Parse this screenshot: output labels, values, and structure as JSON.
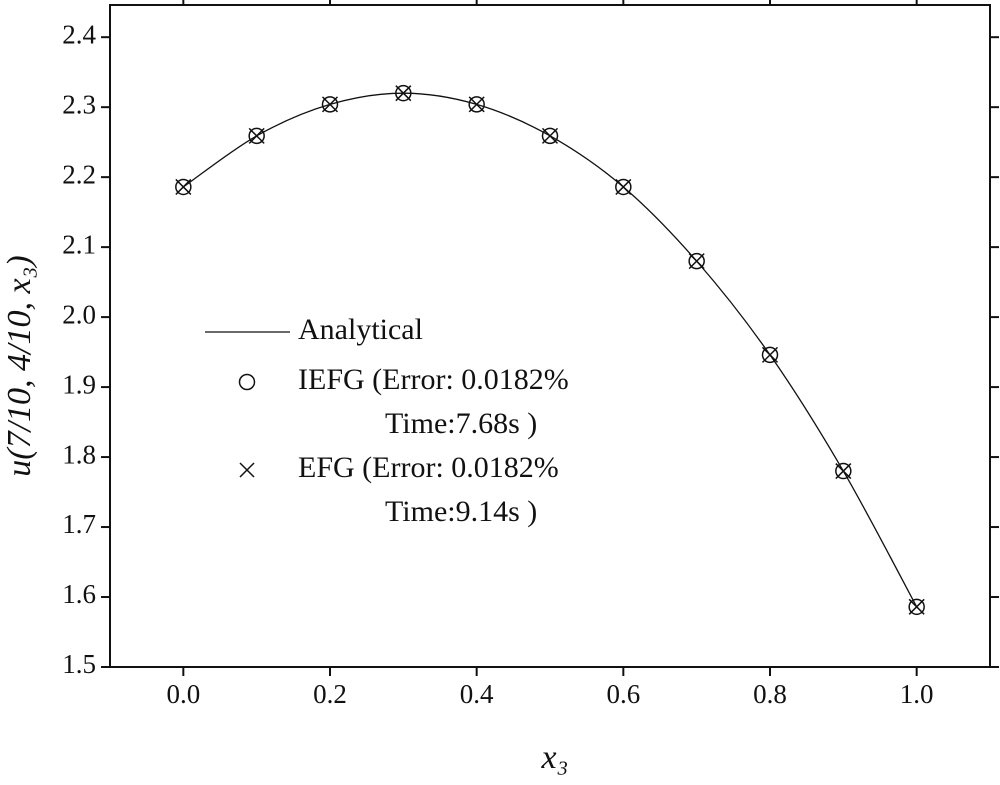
{
  "chart_data": {
    "type": "line",
    "x_label": "x₃",
    "y_label": "u(7/10, 4/10, x₃)",
    "x": [
      0.0,
      0.1,
      0.2,
      0.3,
      0.4,
      0.5,
      0.6,
      0.7,
      0.8,
      0.9,
      1.0
    ],
    "series": [
      {
        "name": "Analytical",
        "color": "#111111",
        "marker": "none",
        "line": true,
        "values": [
          2.186,
          2.259,
          2.304,
          2.32,
          2.304,
          2.259,
          2.186,
          2.08,
          1.946,
          1.78,
          1.586
        ]
      },
      {
        "name": "IEFG (Error: 0.0182%\nTime:7.68s )",
        "color": "#111111",
        "marker": "circle",
        "line": false,
        "values": [
          2.186,
          2.259,
          2.304,
          2.32,
          2.304,
          2.259,
          2.186,
          2.08,
          1.946,
          1.78,
          1.586
        ]
      },
      {
        "name": "EFG  (Error: 0.0182%\nTime:9.14s )",
        "color": "#111111",
        "marker": "cross",
        "line": false,
        "values": [
          2.186,
          2.259,
          2.304,
          2.32,
          2.304,
          2.259,
          2.186,
          2.08,
          1.946,
          1.78,
          1.586
        ]
      }
    ],
    "xlim": [
      -0.1,
      1.1
    ],
    "ylim": [
      1.5,
      2.446
    ],
    "xticks": [
      {
        "value": 0,
        "label": "0.0"
      },
      0.2,
      0.4,
      0.6,
      0.8,
      {
        "value": 1,
        "label": "1.0"
      }
    ],
    "yticks": [
      1.5,
      1.6,
      1.7,
      1.8,
      1.9,
      {
        "value": 2,
        "label": "2.0"
      },
      2.1,
      2.2,
      2.3,
      2.4
    ],
    "grid": false,
    "legend": "left"
  }
}
